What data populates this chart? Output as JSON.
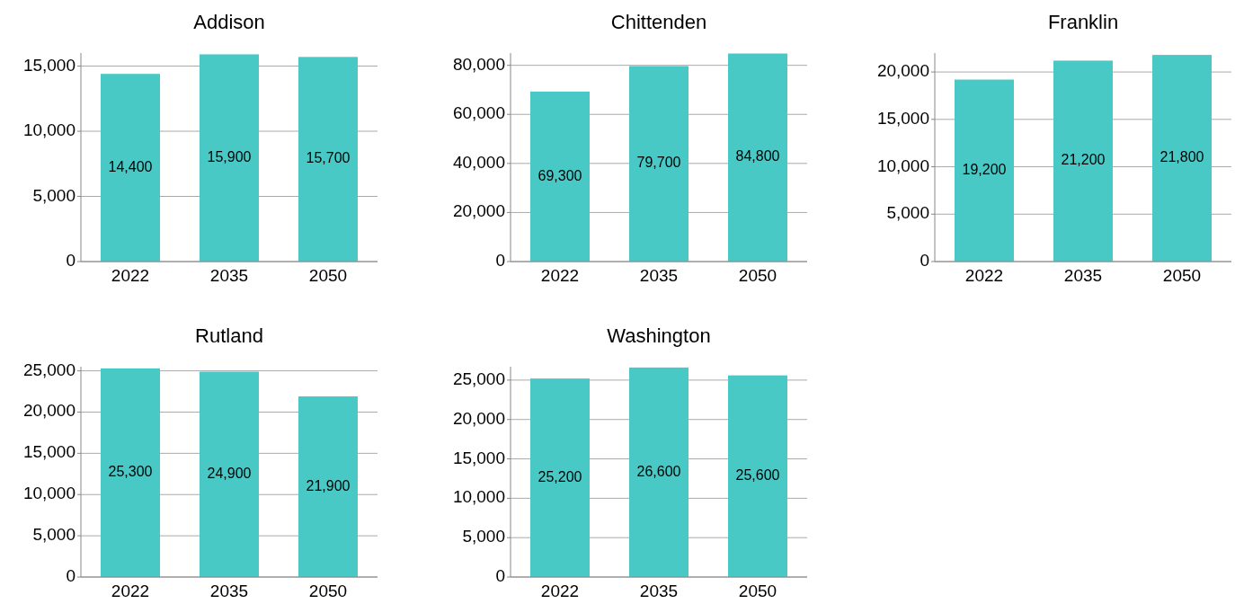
{
  "chart_data": [
    {
      "type": "bar",
      "title": "Addison",
      "categories": [
        "2022",
        "2035",
        "2050"
      ],
      "values": [
        14400,
        15900,
        15700
      ],
      "value_labels": [
        "14,400",
        "15,900",
        "15,700"
      ],
      "color": "#48c9c5",
      "ylim": [
        0,
        16000
      ],
      "yticks": [
        {
          "value": 0,
          "label": "0"
        },
        {
          "value": 5000,
          "label": "5,000"
        },
        {
          "value": 10000,
          "label": "10,000"
        },
        {
          "value": 15000,
          "label": "15,000"
        }
      ],
      "grid": "y"
    },
    {
      "type": "bar",
      "title": "Chittenden",
      "categories": [
        "2022",
        "2035",
        "2050"
      ],
      "values": [
        69300,
        79700,
        84800
      ],
      "value_labels": [
        "69,300",
        "79,700",
        "84,800"
      ],
      "color": "#48c9c5",
      "ylim": [
        0,
        85000
      ],
      "yticks": [
        {
          "value": 0,
          "label": "0"
        },
        {
          "value": 20000,
          "label": "20,000"
        },
        {
          "value": 40000,
          "label": "40,000"
        },
        {
          "value": 60000,
          "label": "60,000"
        },
        {
          "value": 80000,
          "label": "80,000"
        }
      ],
      "grid": "y"
    },
    {
      "type": "bar",
      "title": "Franklin",
      "categories": [
        "2022",
        "2035",
        "2050"
      ],
      "values": [
        19200,
        21200,
        21800
      ],
      "value_labels": [
        "19,200",
        "21,200",
        "21,800"
      ],
      "color": "#48c9c5",
      "ylim": [
        0,
        22000
      ],
      "yticks": [
        {
          "value": 0,
          "label": "0"
        },
        {
          "value": 5000,
          "label": "5,000"
        },
        {
          "value": 10000,
          "label": "10,000"
        },
        {
          "value": 15000,
          "label": "15,000"
        },
        {
          "value": 20000,
          "label": "20,000"
        }
      ],
      "grid": "y"
    },
    {
      "type": "bar",
      "title": "Rutland",
      "categories": [
        "2022",
        "2035",
        "2050"
      ],
      "values": [
        25300,
        24900,
        21900
      ],
      "value_labels": [
        "25,300",
        "24,900",
        "21,900"
      ],
      "color": "#48c9c5",
      "ylim": [
        0,
        25500
      ],
      "yticks": [
        {
          "value": 0,
          "label": "0"
        },
        {
          "value": 5000,
          "label": "5,000"
        },
        {
          "value": 10000,
          "label": "10,000"
        },
        {
          "value": 15000,
          "label": "15,000"
        },
        {
          "value": 20000,
          "label": "20,000"
        },
        {
          "value": 25000,
          "label": "25,000"
        }
      ],
      "grid": "y"
    },
    {
      "type": "bar",
      "title": "Washington",
      "categories": [
        "2022",
        "2035",
        "2050"
      ],
      "values": [
        25200,
        26600,
        25600
      ],
      "value_labels": [
        "25,200",
        "26,600",
        "25,600"
      ],
      "color": "#48c9c5",
      "ylim": [
        0,
        26700
      ],
      "yticks": [
        {
          "value": 0,
          "label": "0"
        },
        {
          "value": 5000,
          "label": "5,000"
        },
        {
          "value": 10000,
          "label": "10,000"
        },
        {
          "value": 15000,
          "label": "15,000"
        },
        {
          "value": 20000,
          "label": "20,000"
        },
        {
          "value": 25000,
          "label": "25,000"
        }
      ],
      "grid": "y"
    }
  ]
}
